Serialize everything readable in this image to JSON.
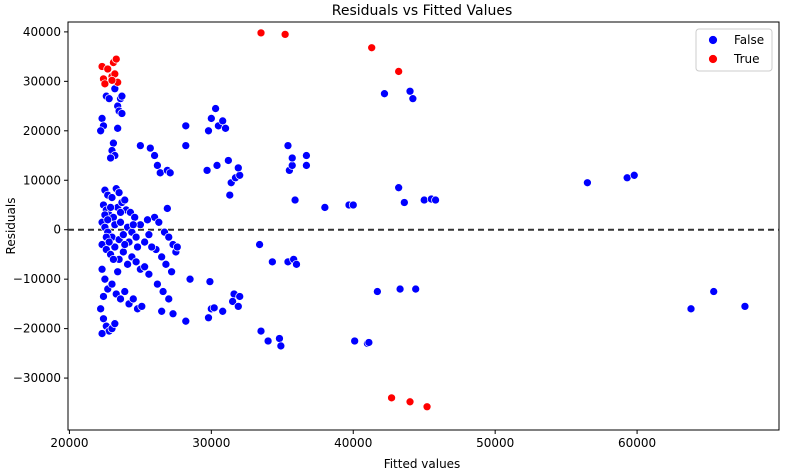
{
  "chart_data": {
    "type": "scatter",
    "title": "Residuals vs Fitted Values",
    "xlabel": "Fitted values",
    "ylabel": "Residuals",
    "xlim": [
      19900,
      70000
    ],
    "ylim": [
      -40500,
      42000
    ],
    "xticks": [
      20000,
      30000,
      40000,
      50000,
      60000
    ],
    "yticks": [
      -30000,
      -20000,
      -10000,
      0,
      10000,
      20000,
      30000,
      40000
    ],
    "xtick_labels": [
      "20000",
      "30000",
      "40000",
      "50000",
      "60000"
    ],
    "ytick_labels": [
      "−30000",
      "−20000",
      "−10000",
      "0",
      "10000",
      "20000",
      "30000",
      "40000"
    ],
    "reference_line": {
      "y": 0,
      "style": "dashed",
      "color": "#333333"
    },
    "grid": false,
    "legend": {
      "placement": "top-right",
      "entries": [
        "False",
        "True"
      ]
    },
    "series": [
      {
        "name": "False",
        "color": "#0000ff",
        "points": [
          [
            22300,
            22500
          ],
          [
            22400,
            21000
          ],
          [
            22200,
            20000
          ],
          [
            22600,
            27000
          ],
          [
            22800,
            26500
          ],
          [
            23200,
            28500
          ],
          [
            23400,
            25000
          ],
          [
            23600,
            26500
          ],
          [
            23500,
            24000
          ],
          [
            23700,
            27000
          ],
          [
            23100,
            17500
          ],
          [
            23000,
            16000
          ],
          [
            23200,
            15000
          ],
          [
            23400,
            20500
          ],
          [
            22900,
            14500
          ],
          [
            23700,
            23500
          ],
          [
            22500,
            8000
          ],
          [
            22700,
            7000
          ],
          [
            23000,
            6500
          ],
          [
            23300,
            8300
          ],
          [
            23500,
            7500
          ],
          [
            22400,
            5000
          ],
          [
            22600,
            4000
          ],
          [
            22800,
            3000
          ],
          [
            23100,
            2500
          ],
          [
            23400,
            4500
          ],
          [
            23700,
            5500
          ],
          [
            24000,
            4000
          ],
          [
            24300,
            3500
          ],
          [
            24600,
            2500
          ],
          [
            22300,
            1500
          ],
          [
            22500,
            500
          ],
          [
            22700,
            -500
          ],
          [
            23000,
            -1500
          ],
          [
            23200,
            1000
          ],
          [
            23500,
            -2000
          ],
          [
            23800,
            -1000
          ],
          [
            24100,
            500
          ],
          [
            24400,
            -500
          ],
          [
            24700,
            -1500
          ],
          [
            25000,
            1000
          ],
          [
            25300,
            -2500
          ],
          [
            25600,
            -1000
          ],
          [
            22300,
            -3000
          ],
          [
            22600,
            -4000
          ],
          [
            22900,
            -5000
          ],
          [
            23200,
            -3500
          ],
          [
            23500,
            -6000
          ],
          [
            23800,
            -4500
          ],
          [
            24100,
            -7000
          ],
          [
            24400,
            -5500
          ],
          [
            24700,
            -6500
          ],
          [
            25000,
            -8000
          ],
          [
            25300,
            -7500
          ],
          [
            25600,
            -9000
          ],
          [
            22300,
            -8000
          ],
          [
            22500,
            -10000
          ],
          [
            22700,
            -12000
          ],
          [
            23000,
            -11000
          ],
          [
            23300,
            -13000
          ],
          [
            23600,
            -14000
          ],
          [
            23900,
            -12500
          ],
          [
            24200,
            -15000
          ],
          [
            24500,
            -14000
          ],
          [
            24800,
            -16000
          ],
          [
            25100,
            -15500
          ],
          [
            22200,
            -16000
          ],
          [
            22400,
            -18000
          ],
          [
            22600,
            -19500
          ],
          [
            22800,
            -20500
          ],
          [
            23000,
            -20000
          ],
          [
            23200,
            -19000
          ],
          [
            22300,
            -21000
          ],
          [
            25000,
            17000
          ],
          [
            25700,
            16500
          ],
          [
            26000,
            15000
          ],
          [
            26200,
            13000
          ],
          [
            26400,
            11500
          ],
          [
            26900,
            12000
          ],
          [
            27100,
            11500
          ],
          [
            26900,
            4300
          ],
          [
            26000,
            2500
          ],
          [
            26300,
            1500
          ],
          [
            26700,
            -500
          ],
          [
            27000,
            -1500
          ],
          [
            27300,
            -3000
          ],
          [
            26100,
            -4000
          ],
          [
            26500,
            -5500
          ],
          [
            26800,
            -7000
          ],
          [
            27200,
            -8500
          ],
          [
            26200,
            -11000
          ],
          [
            26600,
            -12500
          ],
          [
            27000,
            -14000
          ],
          [
            26500,
            -16500
          ],
          [
            27300,
            -17000
          ],
          [
            25500,
            2000
          ],
          [
            25800,
            -3500
          ],
          [
            27500,
            -4500
          ],
          [
            27600,
            -3500
          ],
          [
            28500,
            -10000
          ],
          [
            28200,
            -18500
          ],
          [
            28200,
            17000
          ],
          [
            28200,
            21000
          ],
          [
            29700,
            12000
          ],
          [
            29900,
            -10500
          ],
          [
            29800,
            20000
          ],
          [
            30000,
            22500
          ],
          [
            30300,
            24500
          ],
          [
            30500,
            21000
          ],
          [
            30800,
            22000
          ],
          [
            30400,
            13000
          ],
          [
            30000,
            -16000
          ],
          [
            30200,
            -15800
          ],
          [
            29800,
            -17800
          ],
          [
            30800,
            -16500
          ],
          [
            31000,
            20500
          ],
          [
            31200,
            14000
          ],
          [
            31300,
            7000
          ],
          [
            31400,
            9500
          ],
          [
            31700,
            10500
          ],
          [
            32000,
            11000
          ],
          [
            31900,
            12500
          ],
          [
            31600,
            -13000
          ],
          [
            31500,
            -14500
          ],
          [
            31900,
            -15500
          ],
          [
            32000,
            -13500
          ],
          [
            33400,
            -3000
          ],
          [
            33500,
            -20500
          ],
          [
            34000,
            -22500
          ],
          [
            34300,
            -6500
          ],
          [
            34800,
            -22000
          ],
          [
            34900,
            -23500
          ],
          [
            35400,
            17000
          ],
          [
            35500,
            12000
          ],
          [
            35700,
            13000
          ],
          [
            35700,
            14500
          ],
          [
            35400,
            -6500
          ],
          [
            35800,
            -6000
          ],
          [
            36000,
            -7000
          ],
          [
            35900,
            6000
          ],
          [
            36700,
            15000
          ],
          [
            36700,
            13000
          ],
          [
            38000,
            4500
          ],
          [
            39700,
            5000
          ],
          [
            40000,
            5000
          ],
          [
            40100,
            -22500
          ],
          [
            41000,
            -23000
          ],
          [
            41100,
            -22800
          ],
          [
            41700,
            -12500
          ],
          [
            42200,
            27500
          ],
          [
            43200,
            8500
          ],
          [
            43300,
            -12000
          ],
          [
            43600,
            5500
          ],
          [
            44000,
            28000
          ],
          [
            44200,
            26500
          ],
          [
            44400,
            -12000
          ],
          [
            45000,
            6000
          ],
          [
            45500,
            6200
          ],
          [
            45800,
            6000
          ],
          [
            56500,
            9500
          ],
          [
            59300,
            10500
          ],
          [
            59800,
            11000
          ],
          [
            63800,
            -16000
          ],
          [
            65400,
            -12500
          ],
          [
            67600,
            -15500
          ],
          [
            22400,
            -13500
          ],
          [
            22600,
            -1500
          ],
          [
            22800,
            -2500
          ],
          [
            23100,
            -6000
          ],
          [
            23400,
            -8500
          ],
          [
            23600,
            1500
          ],
          [
            23900,
            6000
          ],
          [
            24200,
            -2500
          ],
          [
            24500,
            1000
          ],
          [
            24800,
            -3500
          ],
          [
            22500,
            3000
          ],
          [
            22700,
            2000
          ],
          [
            22900,
            4500
          ],
          [
            23600,
            3500
          ],
          [
            23900,
            -3000
          ]
        ]
      },
      {
        "name": "True",
        "color": "#ff0000",
        "points": [
          [
            22300,
            33000
          ],
          [
            22400,
            30500
          ],
          [
            22500,
            29500
          ],
          [
            22700,
            32500
          ],
          [
            23000,
            31000
          ],
          [
            23100,
            33800
          ],
          [
            23300,
            34500
          ],
          [
            23200,
            31500
          ],
          [
            23400,
            29800
          ],
          [
            23000,
            30200
          ],
          [
            33500,
            39800
          ],
          [
            35200,
            39500
          ],
          [
            41300,
            36800
          ],
          [
            43200,
            32000
          ],
          [
            42700,
            -34000
          ],
          [
            44000,
            -34800
          ],
          [
            45200,
            -35800
          ]
        ]
      }
    ]
  }
}
